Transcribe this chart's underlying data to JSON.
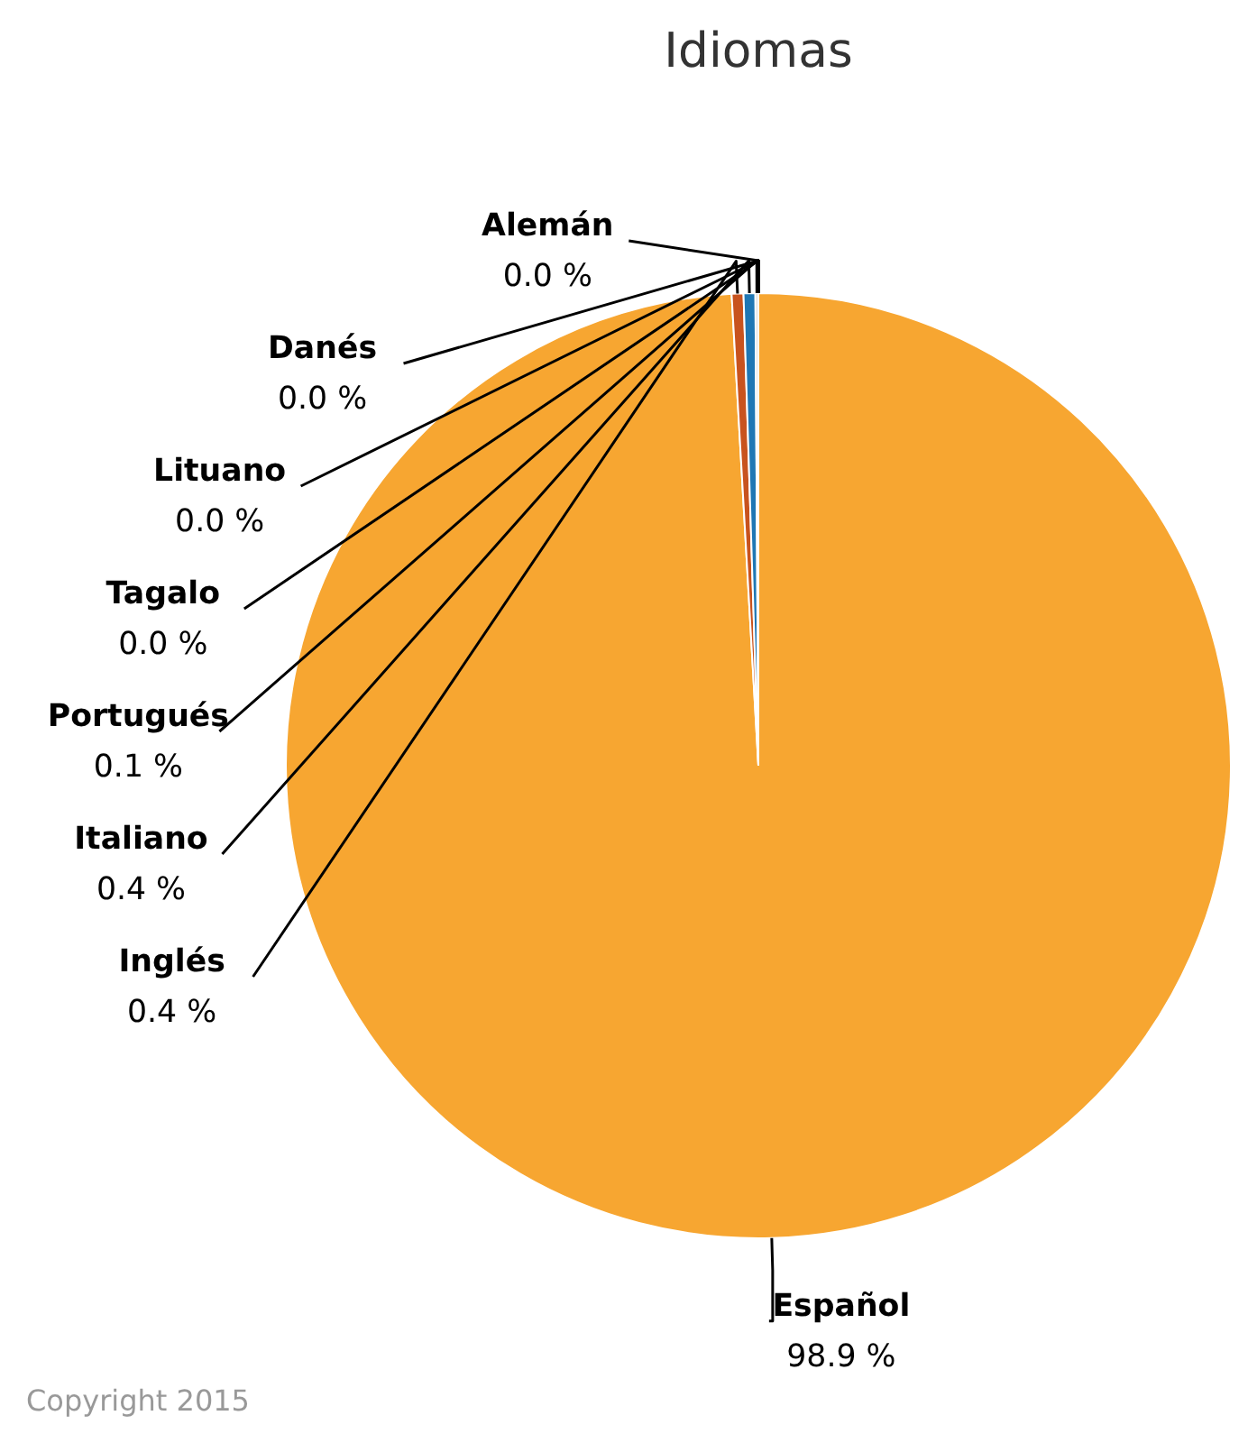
{
  "chart_data": {
    "type": "pie",
    "title": "Idiomas",
    "categories": [
      "Español",
      "Inglés",
      "Italiano",
      "Portugués",
      "Tagalo",
      "Lituano",
      "Danés",
      "Alemán"
    ],
    "values": [
      98.9,
      0.4,
      0.4,
      0.1,
      0.0,
      0.0,
      0.0,
      0.0
    ],
    "value_labels": [
      "98.9 %",
      "0.4 %",
      "0.4 %",
      "0.1 %",
      "0.0 %",
      "0.0 %",
      "0.0 %",
      "0.0 %"
    ],
    "colors": [
      "#f7a631",
      "#c8531e",
      "#1f77b4",
      "#dddddd",
      "#333333",
      "#222222",
      "#111111",
      "#000000"
    ],
    "annotations": [
      "Copyright 2015"
    ]
  }
}
